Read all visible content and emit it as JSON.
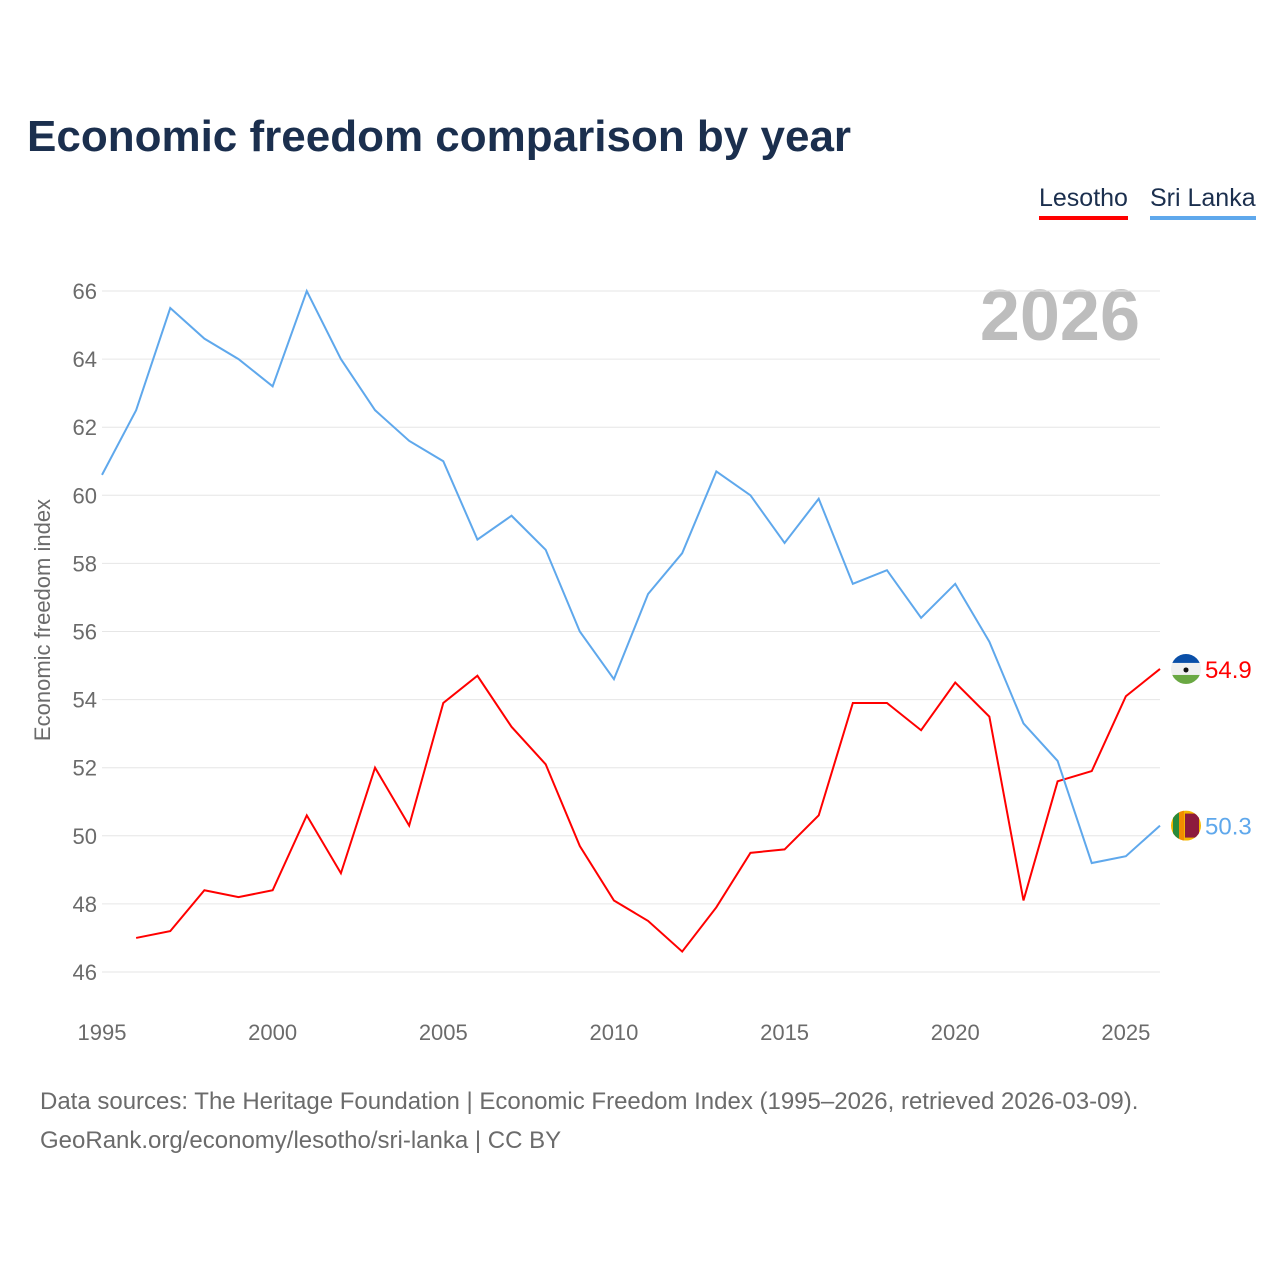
{
  "chart_data": {
    "type": "line",
    "title": "Economic freedom comparison by year",
    "xlabel": "",
    "ylabel": "Economic freedom index",
    "xlim": [
      1995,
      2026
    ],
    "ylim": [
      46,
      66
    ],
    "yticks": [
      46,
      48,
      50,
      52,
      54,
      56,
      58,
      60,
      62,
      64,
      66
    ],
    "xticks": [
      1995,
      2000,
      2005,
      2010,
      2015,
      2020,
      2025
    ],
    "year_watermark": "2026",
    "legend_position": "top-right",
    "grid": true,
    "series": [
      {
        "name": "Lesotho",
        "color": "#ff0000",
        "end_label": "54.9",
        "x": [
          1996,
          1997,
          1998,
          1999,
          2000,
          2001,
          2002,
          2003,
          2004,
          2005,
          2006,
          2007,
          2008,
          2009,
          2010,
          2011,
          2012,
          2013,
          2014,
          2015,
          2016,
          2017,
          2018,
          2019,
          2020,
          2021,
          2022,
          2023,
          2024,
          2025,
          2026
        ],
        "values": [
          47.0,
          47.2,
          48.4,
          48.2,
          48.4,
          50.6,
          48.9,
          52.0,
          50.3,
          53.9,
          54.7,
          53.2,
          52.1,
          49.7,
          48.1,
          47.5,
          46.6,
          47.9,
          49.5,
          49.6,
          50.6,
          53.9,
          53.9,
          53.1,
          54.5,
          53.5,
          48.1,
          51.6,
          51.9,
          54.1,
          54.9
        ]
      },
      {
        "name": "Sri Lanka",
        "color": "#5fa8ec",
        "end_label": "50.3",
        "x": [
          1995,
          1996,
          1997,
          1998,
          1999,
          2000,
          2001,
          2002,
          2003,
          2004,
          2005,
          2006,
          2007,
          2008,
          2009,
          2010,
          2011,
          2012,
          2013,
          2014,
          2015,
          2016,
          2017,
          2018,
          2019,
          2020,
          2021,
          2022,
          2023,
          2024,
          2025,
          2026
        ],
        "values": [
          60.6,
          62.5,
          65.5,
          64.6,
          64.0,
          63.2,
          66.0,
          64.0,
          62.5,
          61.6,
          61.0,
          58.7,
          59.4,
          58.4,
          56.0,
          54.6,
          57.1,
          58.3,
          60.7,
          60.0,
          58.6,
          59.9,
          57.4,
          57.8,
          56.4,
          57.4,
          55.7,
          53.3,
          52.2,
          49.2,
          49.4,
          50.3
        ]
      }
    ]
  },
  "footer": {
    "line1": "Data sources: The Heritage Foundation | Economic Freedom Index (1995–2026, retrieved 2026-03-09).",
    "line2": "GeoRank.org/economy/lesotho/sri-lanka | CC BY"
  }
}
